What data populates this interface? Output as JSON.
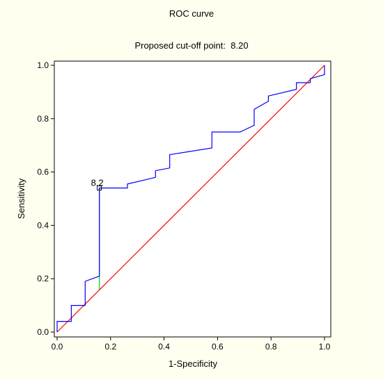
{
  "chart_data": {
    "type": "line",
    "title": "ROC curve",
    "subtitle": "Proposed cut-off point:  8.20",
    "xlabel": "1-Specificity",
    "ylabel": "Sensitivity",
    "xlim": [
      0,
      1
    ],
    "ylim": [
      0,
      1
    ],
    "x_ticks": [
      0.0,
      0.2,
      0.4,
      0.6,
      0.8,
      1.0
    ],
    "y_ticks": [
      0.0,
      0.2,
      0.4,
      0.6,
      0.8,
      1.0
    ],
    "x_tick_labels": [
      "0.0",
      "0.2",
      "0.4",
      "0.6",
      "0.8",
      "1.0"
    ],
    "y_tick_labels": [
      "0.0",
      "0.2",
      "0.4",
      "0.6",
      "0.8",
      "1.0"
    ],
    "grid": false,
    "series": [
      {
        "role": "roc",
        "color": "#0000ff",
        "points": [
          [
            0,
            0
          ],
          [
            0,
            0.04
          ],
          [
            0.053,
            0.04
          ],
          [
            0.053,
            0.1
          ],
          [
            0.105,
            0.1
          ],
          [
            0.105,
            0.19
          ],
          [
            0.158,
            0.21
          ],
          [
            0.158,
            0.54
          ],
          [
            0.263,
            0.54
          ],
          [
            0.263,
            0.555
          ],
          [
            0.368,
            0.58
          ],
          [
            0.368,
            0.605
          ],
          [
            0.421,
            0.615
          ],
          [
            0.421,
            0.665
          ],
          [
            0.579,
            0.69
          ],
          [
            0.579,
            0.75
          ],
          [
            0.684,
            0.75
          ],
          [
            0.737,
            0.775
          ],
          [
            0.737,
            0.835
          ],
          [
            0.79,
            0.865
          ],
          [
            0.79,
            0.885
          ],
          [
            0.895,
            0.91
          ],
          [
            0.895,
            0.935
          ],
          [
            0.947,
            0.935
          ],
          [
            0.947,
            0.95
          ],
          [
            1.0,
            0.965
          ],
          [
            1.0,
            1.0
          ]
        ]
      },
      {
        "role": "diagonal",
        "color": "#ff0000",
        "points": [
          [
            0,
            0
          ],
          [
            1,
            1
          ]
        ]
      },
      {
        "role": "cutoff-line",
        "color": "#00cc00",
        "points": [
          [
            0.158,
            0.16
          ],
          [
            0.158,
            0.54
          ]
        ]
      }
    ],
    "annotations": [
      {
        "label": "8.2",
        "x": 0.158,
        "y": 0.54
      }
    ]
  }
}
